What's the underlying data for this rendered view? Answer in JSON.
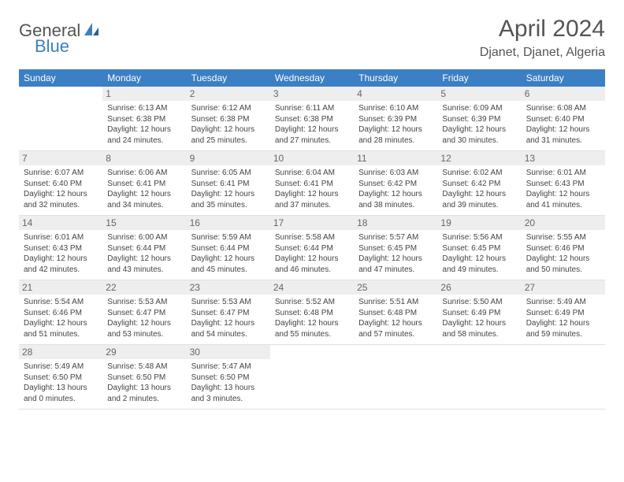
{
  "logo": {
    "text1": "General",
    "text2": "Blue"
  },
  "header": {
    "month": "April 2024",
    "location": "Djanet, Djanet, Algeria"
  },
  "colors": {
    "header_bar": "#3b7fc4",
    "daynum_bg": "#eeeeee",
    "text": "#444444",
    "logo_gray": "#555555",
    "logo_blue": "#3b7fc4"
  },
  "weekdays": [
    "Sunday",
    "Monday",
    "Tuesday",
    "Wednesday",
    "Thursday",
    "Friday",
    "Saturday"
  ],
  "weeks": [
    [
      {
        "n": "",
        "sr": "",
        "ss": "",
        "dl": ""
      },
      {
        "n": "1",
        "sr": "Sunrise: 6:13 AM",
        "ss": "Sunset: 6:38 PM",
        "dl": "Daylight: 12 hours and 24 minutes."
      },
      {
        "n": "2",
        "sr": "Sunrise: 6:12 AM",
        "ss": "Sunset: 6:38 PM",
        "dl": "Daylight: 12 hours and 25 minutes."
      },
      {
        "n": "3",
        "sr": "Sunrise: 6:11 AM",
        "ss": "Sunset: 6:38 PM",
        "dl": "Daylight: 12 hours and 27 minutes."
      },
      {
        "n": "4",
        "sr": "Sunrise: 6:10 AM",
        "ss": "Sunset: 6:39 PM",
        "dl": "Daylight: 12 hours and 28 minutes."
      },
      {
        "n": "5",
        "sr": "Sunrise: 6:09 AM",
        "ss": "Sunset: 6:39 PM",
        "dl": "Daylight: 12 hours and 30 minutes."
      },
      {
        "n": "6",
        "sr": "Sunrise: 6:08 AM",
        "ss": "Sunset: 6:40 PM",
        "dl": "Daylight: 12 hours and 31 minutes."
      }
    ],
    [
      {
        "n": "7",
        "sr": "Sunrise: 6:07 AM",
        "ss": "Sunset: 6:40 PM",
        "dl": "Daylight: 12 hours and 32 minutes."
      },
      {
        "n": "8",
        "sr": "Sunrise: 6:06 AM",
        "ss": "Sunset: 6:41 PM",
        "dl": "Daylight: 12 hours and 34 minutes."
      },
      {
        "n": "9",
        "sr": "Sunrise: 6:05 AM",
        "ss": "Sunset: 6:41 PM",
        "dl": "Daylight: 12 hours and 35 minutes."
      },
      {
        "n": "10",
        "sr": "Sunrise: 6:04 AM",
        "ss": "Sunset: 6:41 PM",
        "dl": "Daylight: 12 hours and 37 minutes."
      },
      {
        "n": "11",
        "sr": "Sunrise: 6:03 AM",
        "ss": "Sunset: 6:42 PM",
        "dl": "Daylight: 12 hours and 38 minutes."
      },
      {
        "n": "12",
        "sr": "Sunrise: 6:02 AM",
        "ss": "Sunset: 6:42 PM",
        "dl": "Daylight: 12 hours and 39 minutes."
      },
      {
        "n": "13",
        "sr": "Sunrise: 6:01 AM",
        "ss": "Sunset: 6:43 PM",
        "dl": "Daylight: 12 hours and 41 minutes."
      }
    ],
    [
      {
        "n": "14",
        "sr": "Sunrise: 6:01 AM",
        "ss": "Sunset: 6:43 PM",
        "dl": "Daylight: 12 hours and 42 minutes."
      },
      {
        "n": "15",
        "sr": "Sunrise: 6:00 AM",
        "ss": "Sunset: 6:44 PM",
        "dl": "Daylight: 12 hours and 43 minutes."
      },
      {
        "n": "16",
        "sr": "Sunrise: 5:59 AM",
        "ss": "Sunset: 6:44 PM",
        "dl": "Daylight: 12 hours and 45 minutes."
      },
      {
        "n": "17",
        "sr": "Sunrise: 5:58 AM",
        "ss": "Sunset: 6:44 PM",
        "dl": "Daylight: 12 hours and 46 minutes."
      },
      {
        "n": "18",
        "sr": "Sunrise: 5:57 AM",
        "ss": "Sunset: 6:45 PM",
        "dl": "Daylight: 12 hours and 47 minutes."
      },
      {
        "n": "19",
        "sr": "Sunrise: 5:56 AM",
        "ss": "Sunset: 6:45 PM",
        "dl": "Daylight: 12 hours and 49 minutes."
      },
      {
        "n": "20",
        "sr": "Sunrise: 5:55 AM",
        "ss": "Sunset: 6:46 PM",
        "dl": "Daylight: 12 hours and 50 minutes."
      }
    ],
    [
      {
        "n": "21",
        "sr": "Sunrise: 5:54 AM",
        "ss": "Sunset: 6:46 PM",
        "dl": "Daylight: 12 hours and 51 minutes."
      },
      {
        "n": "22",
        "sr": "Sunrise: 5:53 AM",
        "ss": "Sunset: 6:47 PM",
        "dl": "Daylight: 12 hours and 53 minutes."
      },
      {
        "n": "23",
        "sr": "Sunrise: 5:53 AM",
        "ss": "Sunset: 6:47 PM",
        "dl": "Daylight: 12 hours and 54 minutes."
      },
      {
        "n": "24",
        "sr": "Sunrise: 5:52 AM",
        "ss": "Sunset: 6:48 PM",
        "dl": "Daylight: 12 hours and 55 minutes."
      },
      {
        "n": "25",
        "sr": "Sunrise: 5:51 AM",
        "ss": "Sunset: 6:48 PM",
        "dl": "Daylight: 12 hours and 57 minutes."
      },
      {
        "n": "26",
        "sr": "Sunrise: 5:50 AM",
        "ss": "Sunset: 6:49 PM",
        "dl": "Daylight: 12 hours and 58 minutes."
      },
      {
        "n": "27",
        "sr": "Sunrise: 5:49 AM",
        "ss": "Sunset: 6:49 PM",
        "dl": "Daylight: 12 hours and 59 minutes."
      }
    ],
    [
      {
        "n": "28",
        "sr": "Sunrise: 5:49 AM",
        "ss": "Sunset: 6:50 PM",
        "dl": "Daylight: 13 hours and 0 minutes."
      },
      {
        "n": "29",
        "sr": "Sunrise: 5:48 AM",
        "ss": "Sunset: 6:50 PM",
        "dl": "Daylight: 13 hours and 2 minutes."
      },
      {
        "n": "30",
        "sr": "Sunrise: 5:47 AM",
        "ss": "Sunset: 6:50 PM",
        "dl": "Daylight: 13 hours and 3 minutes."
      },
      {
        "n": "",
        "sr": "",
        "ss": "",
        "dl": ""
      },
      {
        "n": "",
        "sr": "",
        "ss": "",
        "dl": ""
      },
      {
        "n": "",
        "sr": "",
        "ss": "",
        "dl": ""
      },
      {
        "n": "",
        "sr": "",
        "ss": "",
        "dl": ""
      }
    ]
  ]
}
